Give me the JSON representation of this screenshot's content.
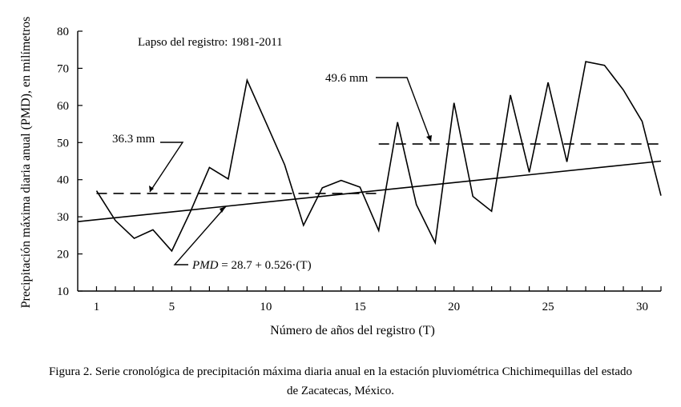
{
  "chart_data": {
    "type": "line",
    "title": "",
    "xlabel": "Número de años del registro (T)",
    "ylabel": "Precipitación máxima diaria anual (PMD), en milímetros",
    "xlim": [
      0,
      31
    ],
    "ylim": [
      10,
      80
    ],
    "xticks": [
      1,
      5,
      10,
      15,
      20,
      25,
      30
    ],
    "yticks": [
      10,
      20,
      30,
      40,
      50,
      60,
      70,
      80
    ],
    "grid": false,
    "series": [
      {
        "style": "solid",
        "x": [
          1,
          2,
          3,
          4,
          5,
          6,
          7,
          8,
          9,
          10,
          11,
          12,
          13,
          14,
          15,
          16,
          17,
          18,
          19,
          20,
          21,
          22,
          23,
          24,
          25,
          26,
          27,
          28,
          29,
          30,
          31
        ],
        "values": [
          37,
          29,
          24.2,
          26.5,
          20.8,
          31.5,
          43.3,
          40.2,
          66.8,
          55.5,
          44,
          27.7,
          37.8,
          39.8,
          38,
          26.3,
          55.5,
          33.3,
          23,
          60.7,
          35.5,
          31.5,
          62.8,
          42,
          66.2,
          44.8,
          71.8,
          70.8,
          64.2,
          55.7,
          35.7
        ]
      },
      {
        "style": "solid",
        "x": [
          0,
          31
        ],
        "values": [
          28.7,
          45.0
        ]
      },
      {
        "style": "dashed",
        "x": [
          1,
          16
        ],
        "values": [
          36.3,
          36.3
        ]
      },
      {
        "style": "dashed",
        "x": [
          16,
          31
        ],
        "values": [
          49.6,
          49.6
        ]
      }
    ],
    "annotations": {
      "period": "Lapso del registro: 1981-2011",
      "mean_first": "36.3 mm",
      "mean_second": "49.6 mm",
      "equation_prefix": "PMD",
      "equation_rest": " = 28.7 + 0.526·(T)"
    }
  },
  "caption": {
    "line1": "Figura 2. Serie cronológica de precipitación máxima diaria anual en la estación pluviométrica Chichimequillas del estado",
    "line2": "de Zacatecas, México."
  }
}
